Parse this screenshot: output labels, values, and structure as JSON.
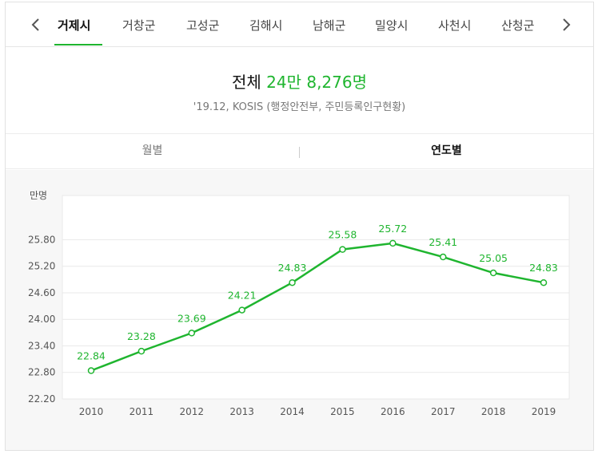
{
  "tabs": {
    "items": [
      "거제시",
      "거창군",
      "고성군",
      "김해시",
      "남해군",
      "밀양시",
      "사천시",
      "산청군"
    ],
    "active_index": 0
  },
  "summary": {
    "label": "전체",
    "value": "24만 8,276명",
    "source": "'19.12, KOSIS (행정안전부, 주민등록인구현황)"
  },
  "subtabs": {
    "items": [
      "월별",
      "연도별"
    ],
    "active_index": 1
  },
  "colors": {
    "accent": "#1fb52f",
    "grid": "#e9e9e9"
  },
  "chart_data": {
    "type": "line",
    "ylabel": "만명",
    "categories": [
      "2010",
      "2011",
      "2012",
      "2013",
      "2014",
      "2015",
      "2016",
      "2017",
      "2018",
      "2019"
    ],
    "series": [
      {
        "values": [
          22.84,
          23.28,
          23.69,
          24.21,
          24.83,
          25.58,
          25.72,
          25.41,
          25.05,
          24.83
        ],
        "labels": [
          "22.84",
          "23.28",
          "23.69",
          "24.21",
          "24.83",
          "25.58",
          "25.72",
          "25.41",
          "25.05",
          "24.83"
        ]
      }
    ],
    "ylim": [
      22.2,
      26.8
    ],
    "yticks": [
      "22.20",
      "22.80",
      "23.40",
      "24.00",
      "24.60",
      "25.20",
      "25.80"
    ],
    "grid": true
  }
}
